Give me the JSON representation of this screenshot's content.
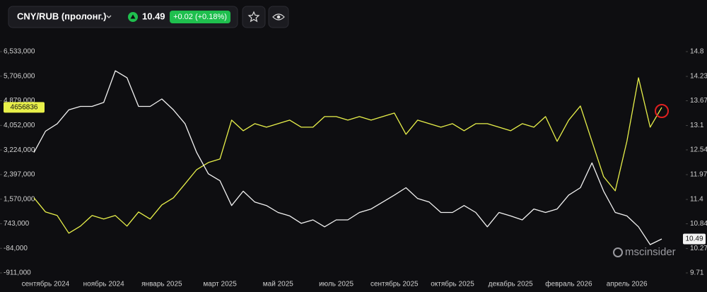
{
  "header": {
    "symbol": "CNY/RUB (пролонг.)",
    "price": 10.49,
    "change": "+0.02 (+0.18%)"
  },
  "watermark": "mscinsider",
  "chart_data": {
    "type": "line",
    "categories": [
      null,
      "сентябрь 2024",
      null,
      null,
      null,
      null,
      "ноябрь 2024",
      null,
      null,
      null,
      null,
      "январь 2025",
      null,
      null,
      null,
      null,
      "март 2025",
      null,
      null,
      null,
      null,
      "май 2025",
      null,
      null,
      null,
      null,
      "июль 2025",
      null,
      null,
      null,
      null,
      "сентябрь 2025",
      null,
      null,
      null,
      null,
      "октябрь 2025",
      null,
      null,
      null,
      null,
      "декабрь 2025",
      null,
      null,
      null,
      null,
      "февраль 2026",
      null,
      null,
      null,
      null,
      "апрель 2026",
      null,
      null,
      null
    ],
    "series": [
      {
        "color": "#e8f04a",
        "values": [
          1614000,
          1139000,
          1020000,
          426000,
          663000,
          1020000,
          901000,
          1020000,
          663000,
          1139000,
          901000,
          1376000,
          1614000,
          2089000,
          2564000,
          2802000,
          2921000,
          4228000,
          3871000,
          4109000,
          3990000,
          4109000,
          4228000,
          3990000,
          3990000,
          4347000,
          4347000,
          4228000,
          4347000,
          4228000,
          4347000,
          4466000,
          3753000,
          4228000,
          4109000,
          3990000,
          4109000,
          3871000,
          4109000,
          4109000,
          3990000,
          3871000,
          4109000,
          3990000,
          4347000,
          3515000,
          4228000,
          4703000,
          3515000,
          2327000,
          1851000,
          3515000,
          5654000,
          3990000,
          4656836
        ]
      },
      {
        "color": "#f2f2f2",
        "axis": "y2",
        "values": [
          12.48,
          12.97,
          13.14,
          13.46,
          13.54,
          13.54,
          13.63,
          14.36,
          14.2,
          13.54,
          13.54,
          13.71,
          13.46,
          13.14,
          12.48,
          11.99,
          11.83,
          11.26,
          11.59,
          11.34,
          11.26,
          11.1,
          11.02,
          10.85,
          10.93,
          10.77,
          10.93,
          10.93,
          11.1,
          11.18,
          11.34,
          11.5,
          11.67,
          11.42,
          11.34,
          11.1,
          11.1,
          11.26,
          11.1,
          10.77,
          11.1,
          11.02,
          10.93,
          11.18,
          11.1,
          11.18,
          11.5,
          11.67,
          12.24,
          11.59,
          11.1,
          11.02,
          10.77,
          10.36,
          10.49
        ]
      }
    ],
    "ylim": [
      -911000,
      6533000
    ],
    "yticks": [
      {
        "value": -911000,
        "label": "-911,000"
      },
      {
        "value": -84000,
        "label": "-84,000"
      },
      {
        "value": 743000,
        "label": "743,000"
      },
      {
        "value": 1570000,
        "label": "1,570,000"
      },
      {
        "value": 2397000,
        "label": "2,397,000"
      },
      {
        "value": 3224000,
        "label": "3,224,000"
      },
      {
        "value": 4052000,
        "label": "4,052,000"
      },
      {
        "value": 4879000,
        "label": "4,879,000"
      },
      {
        "value": 5706000,
        "label": "5,706,000"
      },
      {
        "value": 6533000,
        "label": "6,533,000"
      }
    ],
    "y2lim": [
      9.71,
      14.8
    ],
    "y2ticks": [
      9.71,
      10.27,
      10.84,
      11.4,
      11.97,
      12.54,
      13.1,
      13.67,
      14.23,
      14.8
    ]
  }
}
